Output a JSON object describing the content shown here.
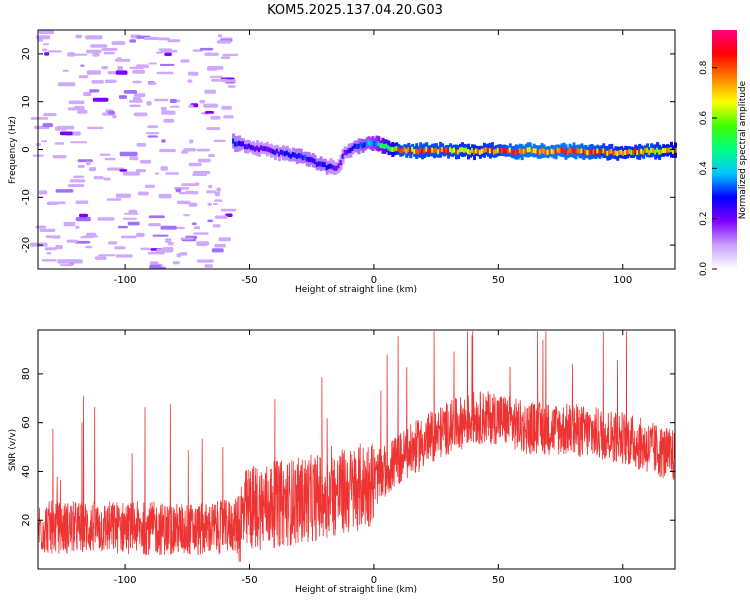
{
  "title": "KOM5.2025.137.04.20.G03",
  "chart_data": [
    {
      "type": "heatmap",
      "xlabel": "Height of straight line (km)",
      "ylabel": "Frequency (Hz)",
      "xlim": [
        -135,
        121
      ],
      "ylim": [
        -25,
        25
      ],
      "xticks": [
        -100,
        -50,
        0,
        50,
        100
      ],
      "yticks": [
        -20,
        -10,
        0,
        10,
        20
      ],
      "colorbar": {
        "label": "Normalized spectral amplitude",
        "range": [
          0,
          0.95
        ],
        "ticks": [
          0,
          0.2,
          0.4,
          0.6,
          0.8
        ],
        "colors": [
          "#ffffff",
          "#c8a0ff",
          "#7f00ff",
          "#0000ff",
          "#00c8ff",
          "#00ff80",
          "#40ff00",
          "#ffff00",
          "#ff8000",
          "#ff0000",
          "#ff0080"
        ]
      },
      "ridge": {
        "x": [
          -57,
          -50,
          -40,
          -30,
          -20,
          -15,
          -12,
          -8,
          -5,
          0,
          5,
          10,
          20,
          30,
          40,
          50,
          60,
          70,
          80,
          90,
          100,
          110,
          121
        ],
        "freq": [
          1.5,
          0.5,
          -0.5,
          -1.5,
          -3.5,
          -4,
          -0.5,
          0.5,
          1,
          1.5,
          0.5,
          -0.2,
          -0.2,
          -0.3,
          -0.3,
          -0.3,
          -0.3,
          -0.4,
          -0.4,
          -0.5,
          -0.6,
          -0.4,
          -0.2
        ],
        "amplitude": [
          0.3,
          0.25,
          0.25,
          0.3,
          0.3,
          0.2,
          0.25,
          0.3,
          0.35,
          0.4,
          0.6,
          0.8,
          0.8,
          0.8,
          0.75,
          0.8,
          0.85,
          0.85,
          0.85,
          0.8,
          0.75,
          0.8,
          0.7
        ]
      },
      "grid": false
    },
    {
      "type": "line",
      "xlabel": "Height of straight line (km)",
      "ylabel": "SNR (v/v)",
      "xlim": [
        -135,
        121
      ],
      "ylim": [
        0,
        98
      ],
      "xticks": [
        -100,
        -50,
        0,
        50,
        100
      ],
      "yticks": [
        20,
        40,
        60,
        80
      ],
      "color": "#ee3333",
      "envelope": {
        "x": [
          -135,
          -100,
          -70,
          -55,
          -50,
          -30,
          -10,
          0,
          10,
          20,
          30,
          40,
          50,
          60,
          80,
          100,
          110,
          121
        ],
        "snr": [
          17,
          17,
          16,
          18,
          25,
          28,
          32,
          36,
          45,
          52,
          58,
          62,
          62,
          58,
          57,
          54,
          50,
          46
        ]
      },
      "grid": false
    }
  ]
}
